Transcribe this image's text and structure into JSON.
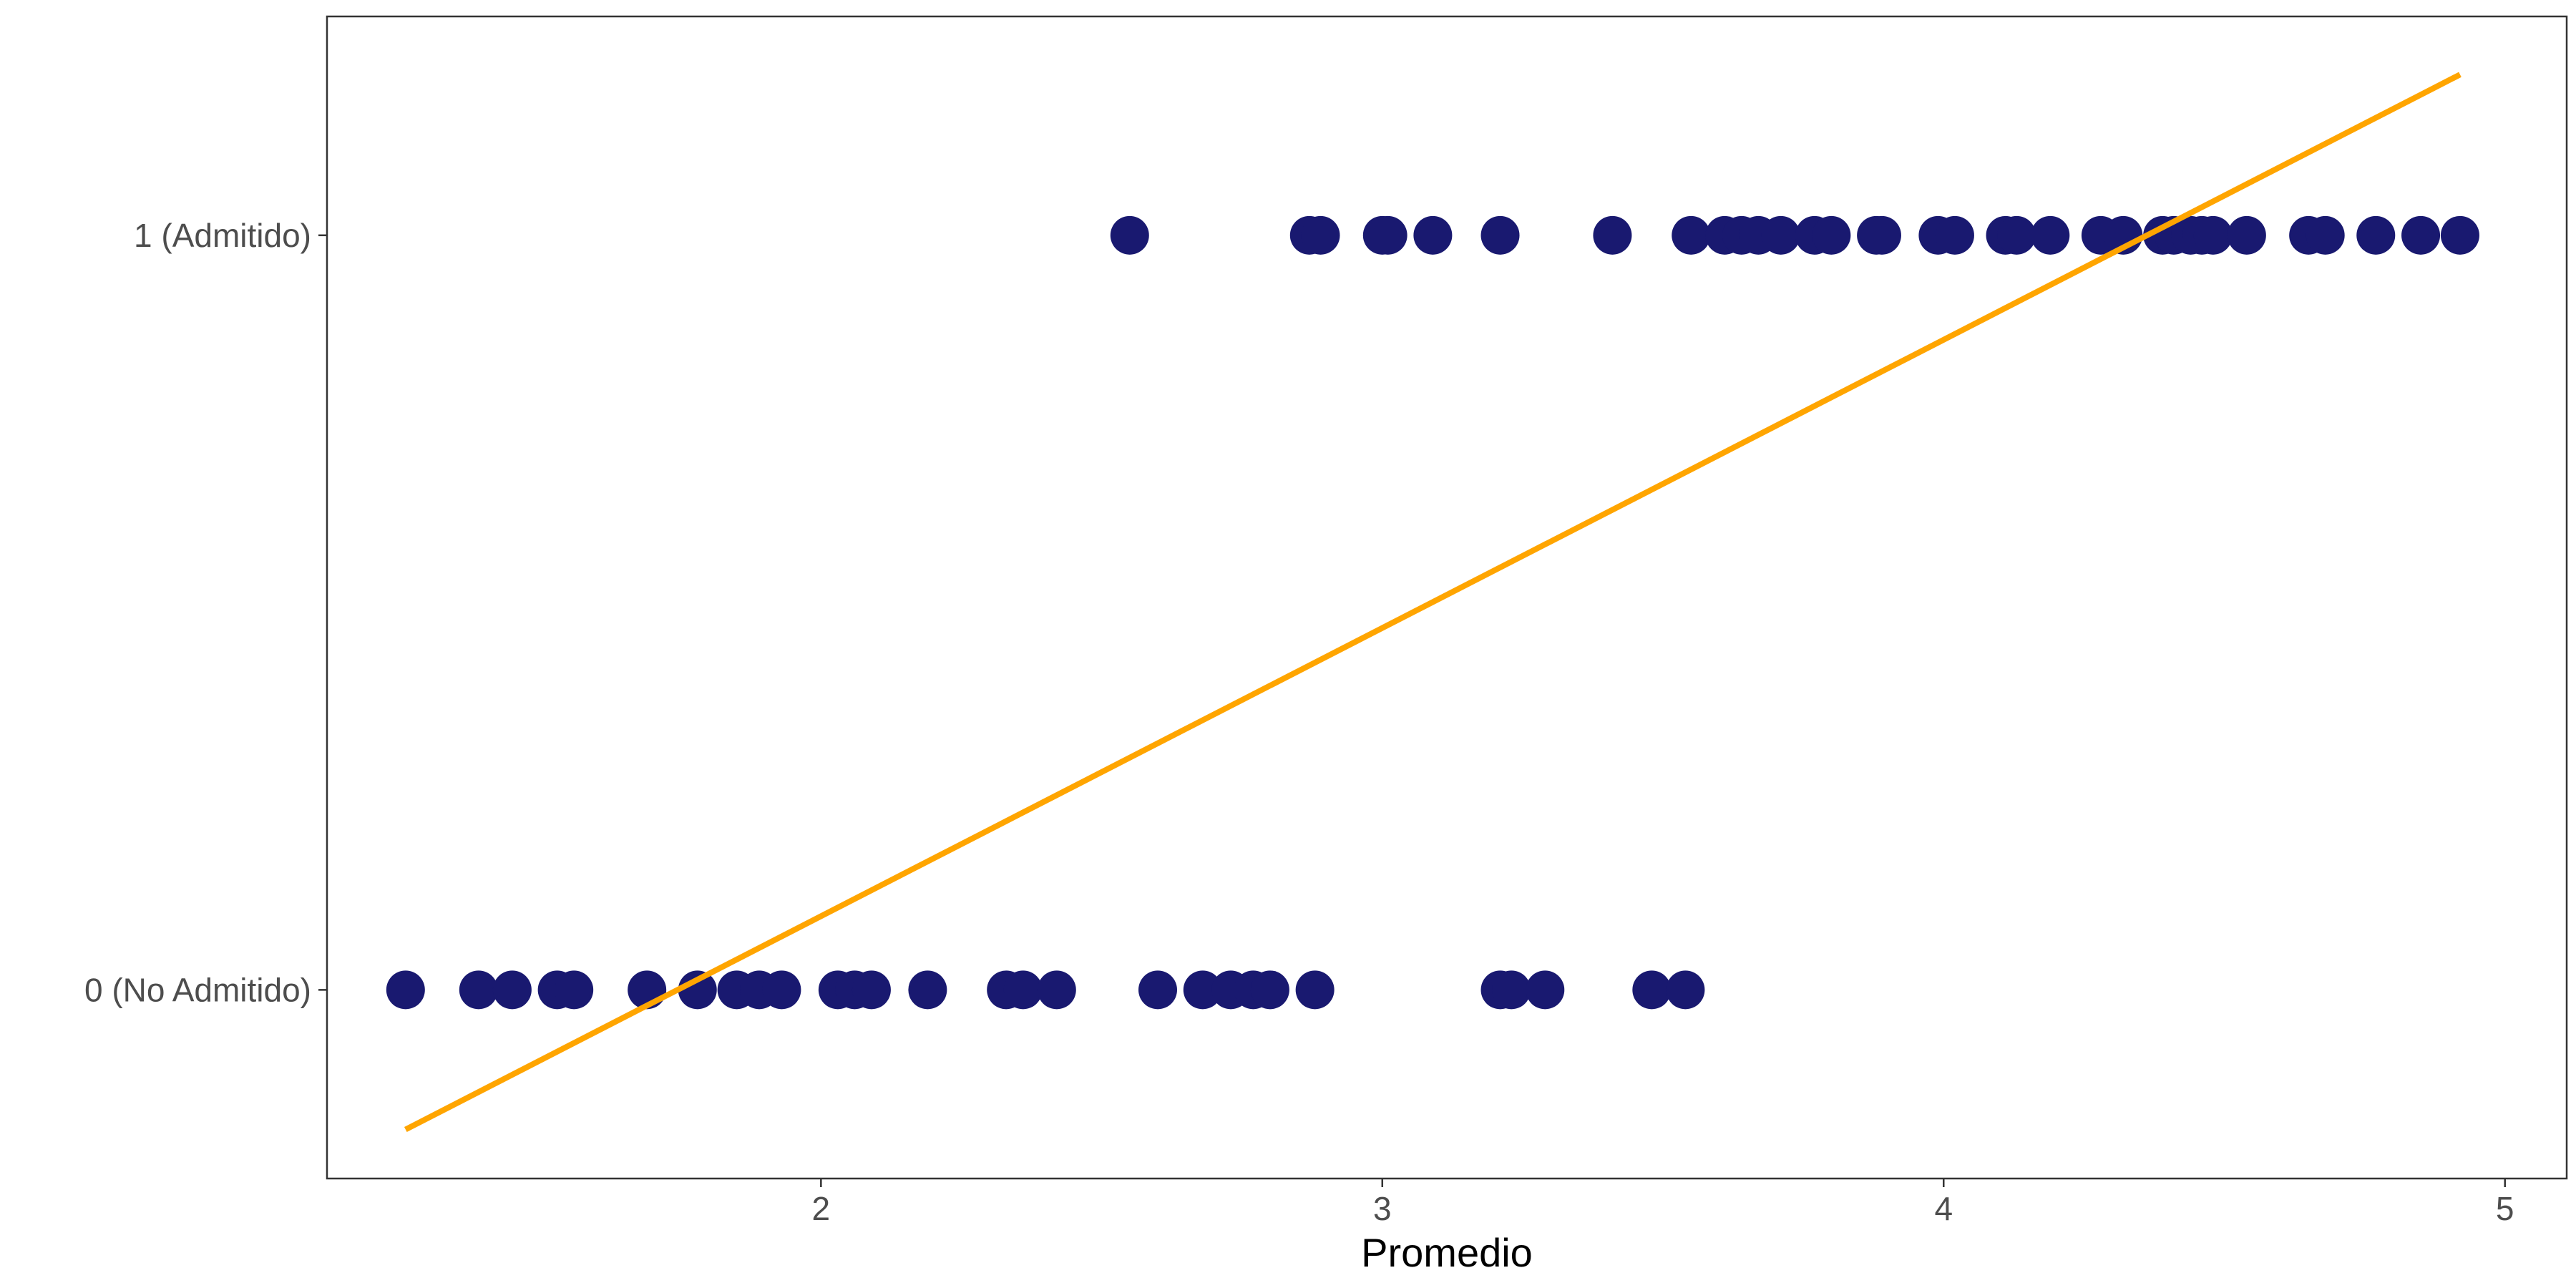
{
  "chart_data": {
    "type": "scatter",
    "title": "",
    "xlabel": "Promedio",
    "ylabel": "",
    "xlim": [
      1.12,
      5.11
    ],
    "ylim": [
      -0.25,
      1.29
    ],
    "grid": false,
    "x_ticks": [
      {
        "value": 2,
        "label": "2"
      },
      {
        "value": 3,
        "label": "3"
      },
      {
        "value": 4,
        "label": "4"
      },
      {
        "value": 5,
        "label": "5"
      }
    ],
    "y_ticks": [
      {
        "value": 0,
        "label": "0 (No Admitido)"
      },
      {
        "value": 1,
        "label": "1 (Admitido)"
      }
    ],
    "series": [
      {
        "kind": "points",
        "color": "#191970",
        "points": [
          {
            "x": 1.26,
            "y": 0
          },
          {
            "x": 1.39,
            "y": 0
          },
          {
            "x": 1.45,
            "y": 0
          },
          {
            "x": 1.53,
            "y": 0
          },
          {
            "x": 1.56,
            "y": 0
          },
          {
            "x": 1.69,
            "y": 0
          },
          {
            "x": 1.78,
            "y": 0
          },
          {
            "x": 1.85,
            "y": 0
          },
          {
            "x": 1.89,
            "y": 0
          },
          {
            "x": 1.93,
            "y": 0
          },
          {
            "x": 2.03,
            "y": 0
          },
          {
            "x": 2.06,
            "y": 0
          },
          {
            "x": 2.09,
            "y": 0
          },
          {
            "x": 2.19,
            "y": 0
          },
          {
            "x": 2.33,
            "y": 0
          },
          {
            "x": 2.36,
            "y": 0
          },
          {
            "x": 2.42,
            "y": 0
          },
          {
            "x": 2.6,
            "y": 0
          },
          {
            "x": 2.68,
            "y": 0
          },
          {
            "x": 2.73,
            "y": 0
          },
          {
            "x": 2.77,
            "y": 0
          },
          {
            "x": 2.8,
            "y": 0
          },
          {
            "x": 2.88,
            "y": 0
          },
          {
            "x": 3.21,
            "y": 0
          },
          {
            "x": 3.23,
            "y": 0
          },
          {
            "x": 3.29,
            "y": 0
          },
          {
            "x": 3.48,
            "y": 0
          },
          {
            "x": 3.54,
            "y": 0
          },
          {
            "x": 2.55,
            "y": 1
          },
          {
            "x": 2.87,
            "y": 1
          },
          {
            "x": 2.89,
            "y": 1
          },
          {
            "x": 3.0,
            "y": 1
          },
          {
            "x": 3.01,
            "y": 1
          },
          {
            "x": 3.09,
            "y": 1
          },
          {
            "x": 3.21,
            "y": 1
          },
          {
            "x": 3.41,
            "y": 1
          },
          {
            "x": 3.55,
            "y": 1
          },
          {
            "x": 3.61,
            "y": 1
          },
          {
            "x": 3.64,
            "y": 1
          },
          {
            "x": 3.67,
            "y": 1
          },
          {
            "x": 3.71,
            "y": 1
          },
          {
            "x": 3.77,
            "y": 1
          },
          {
            "x": 3.8,
            "y": 1
          },
          {
            "x": 3.88,
            "y": 1
          },
          {
            "x": 3.89,
            "y": 1
          },
          {
            "x": 3.99,
            "y": 1
          },
          {
            "x": 4.02,
            "y": 1
          },
          {
            "x": 4.11,
            "y": 1
          },
          {
            "x": 4.13,
            "y": 1
          },
          {
            "x": 4.19,
            "y": 1
          },
          {
            "x": 4.28,
            "y": 1
          },
          {
            "x": 4.32,
            "y": 1
          },
          {
            "x": 4.39,
            "y": 1
          },
          {
            "x": 4.41,
            "y": 1
          },
          {
            "x": 4.44,
            "y": 1
          },
          {
            "x": 4.46,
            "y": 1
          },
          {
            "x": 4.48,
            "y": 1
          },
          {
            "x": 4.54,
            "y": 1
          },
          {
            "x": 4.65,
            "y": 1
          },
          {
            "x": 4.68,
            "y": 1
          },
          {
            "x": 4.77,
            "y": 1
          },
          {
            "x": 4.85,
            "y": 1
          },
          {
            "x": 4.92,
            "y": 1
          }
        ]
      },
      {
        "kind": "line",
        "color": "#FFA500",
        "points": [
          {
            "x": 1.26,
            "y": -0.185
          },
          {
            "x": 4.92,
            "y": 1.213
          }
        ]
      }
    ]
  }
}
